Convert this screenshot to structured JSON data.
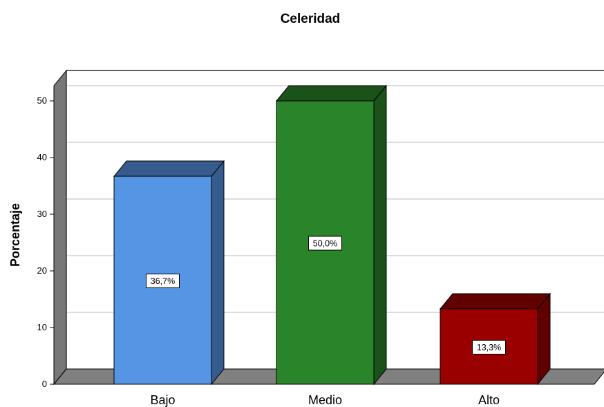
{
  "chart_data": {
    "type": "bar",
    "title": "Celeridad",
    "ylabel": "Porcentaje",
    "xlabel": "",
    "categories": [
      "Bajo",
      "Medio",
      "Alto"
    ],
    "values": [
      36.7,
      50.0,
      13.3
    ],
    "data_labels": [
      "36,7%",
      "50,0%",
      "13,3%"
    ],
    "colors": [
      "#5595e4",
      "#2a852a",
      "#9b0000"
    ],
    "ylim": [
      0,
      50
    ],
    "yticks": [
      0,
      10,
      20,
      30,
      40,
      50
    ],
    "grid": true,
    "style": "3d"
  }
}
